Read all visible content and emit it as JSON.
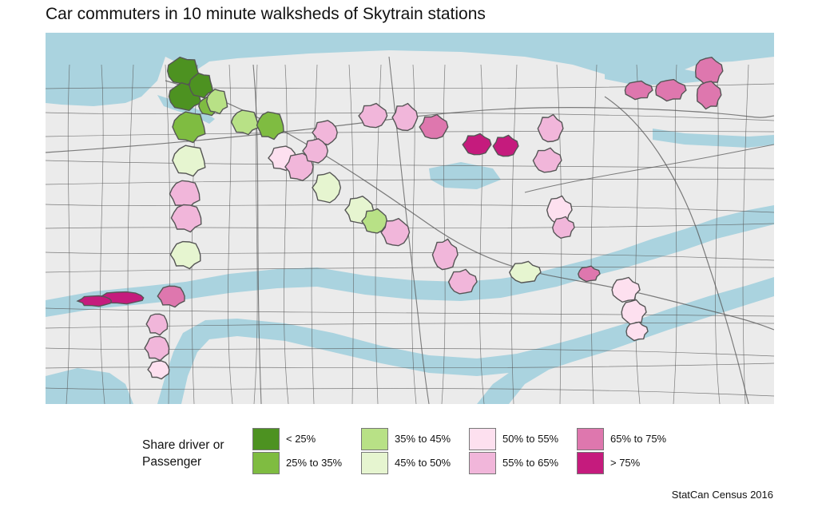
{
  "title": "Car commuters in 10 minute walksheds of Skytrain stations",
  "caption": "StatCan Census 2016",
  "legend": {
    "title_lines": [
      "Share driver or",
      "Passenger"
    ],
    "categories": [
      {
        "label": "< 25%",
        "color": "#4d9221"
      },
      {
        "label": "25% to 35%",
        "color": "#7fbc41"
      },
      {
        "label": "35% to 45%",
        "color": "#b8e186"
      },
      {
        "label": "45% to 50%",
        "color": "#e6f5d0"
      },
      {
        "label": "50% to 55%",
        "color": "#fde0ef"
      },
      {
        "label": "55% to 65%",
        "color": "#f1b6da"
      },
      {
        "label": "65% to 75%",
        "color": "#de77ae"
      },
      {
        "label": "> 75%",
        "color": "#c51b7d"
      }
    ]
  },
  "map": {
    "land_color": "#ebebeb",
    "water_color": "#aad3df",
    "road_color": "#555555",
    "outline_color": "#555555"
  }
}
